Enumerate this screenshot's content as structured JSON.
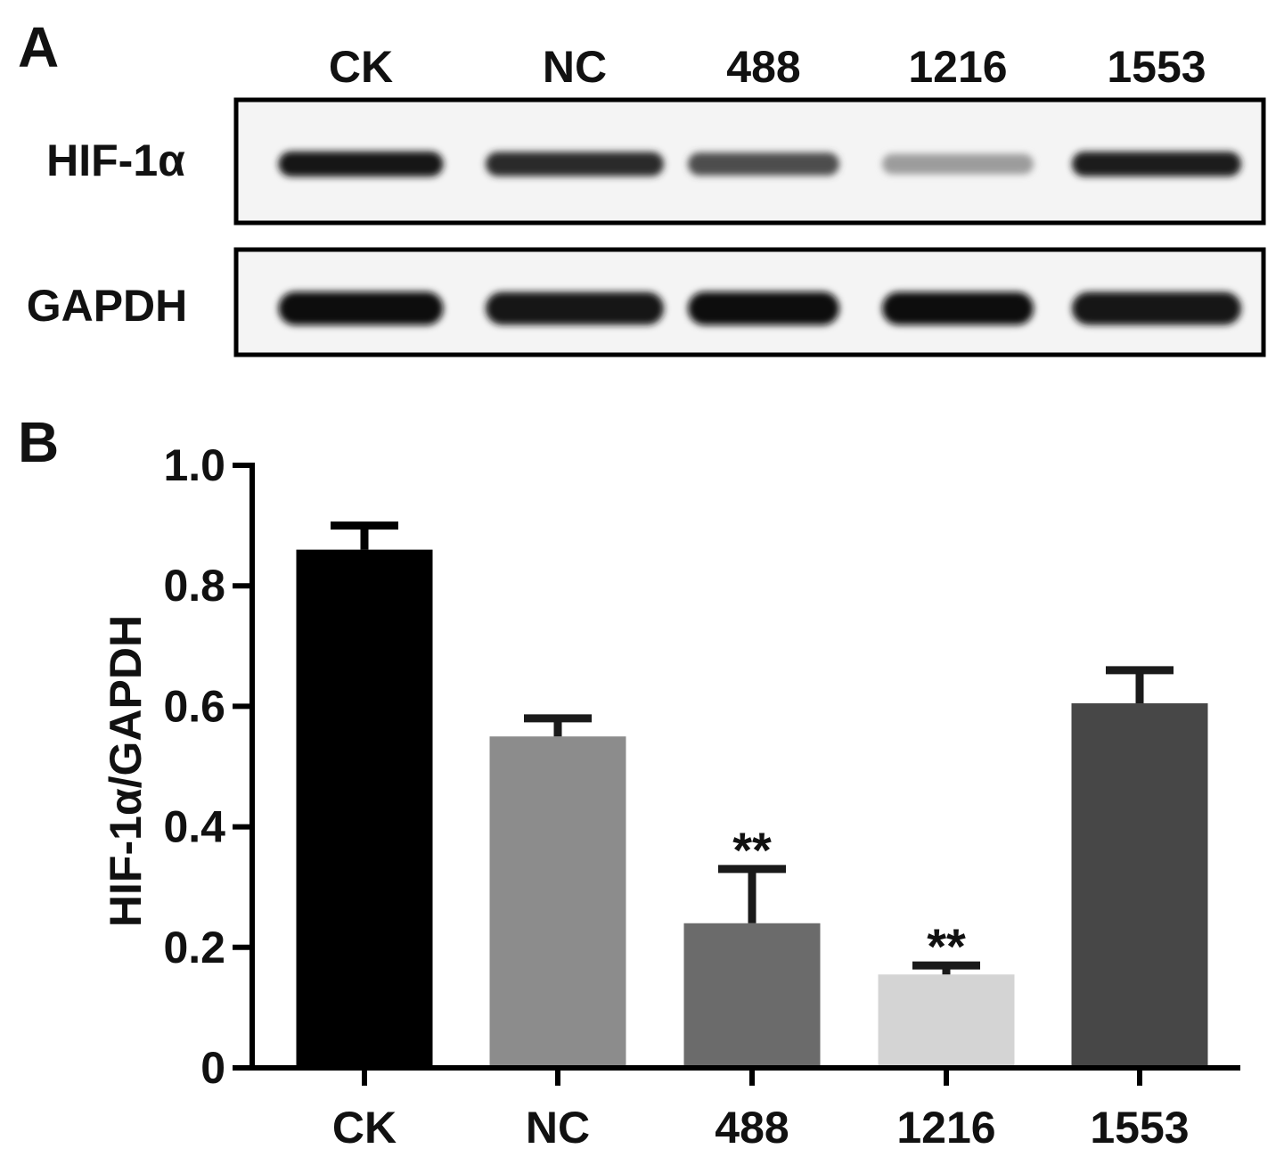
{
  "panel_a": {
    "label": "A",
    "lanes": [
      "CK",
      "NC",
      "488",
      "1216",
      "1553"
    ],
    "rows": [
      {
        "name": "HIF-1α",
        "intensity": [
          0.95,
          0.85,
          0.7,
          0.35,
          0.92
        ]
      },
      {
        "name": "GAPDH",
        "intensity": [
          1.0,
          0.95,
          1.0,
          0.97,
          0.96
        ]
      }
    ]
  },
  "chart_data": {
    "type": "bar",
    "panel_label": "B",
    "categories": [
      "CK",
      "NC",
      "488",
      "1216",
      "1553"
    ],
    "values": [
      0.86,
      0.55,
      0.24,
      0.155,
      0.605
    ],
    "errors": [
      0.04,
      0.03,
      0.09,
      0.015,
      0.055
    ],
    "significance": [
      "",
      "",
      "**",
      "**",
      ""
    ],
    "colors": [
      "#000000",
      "#8c8c8c",
      "#6b6b6b",
      "#d4d4d4",
      "#474747"
    ],
    "ylabel": "HIF-1α/GAPDH",
    "xlabel": "",
    "ylim": [
      0,
      1.0
    ],
    "yticks": [
      0,
      0.2,
      0.4,
      0.6,
      0.8,
      1.0
    ],
    "ytick_labels": [
      "0",
      "0.2",
      "0.4",
      "0.6",
      "0.8",
      "1.0"
    ],
    "grid": false
  }
}
